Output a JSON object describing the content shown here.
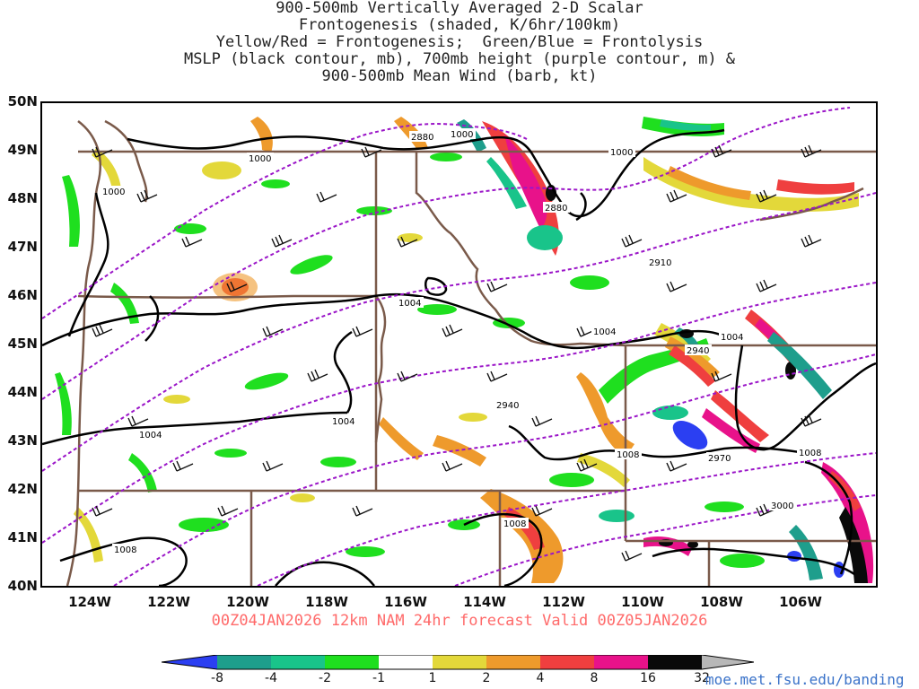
{
  "title_lines": [
    "900-500mb Vertically Averaged 2-D Scalar",
    "Frontogenesis (shaded, K/6hr/100km)",
    "Yellow/Red = Frontogenesis;  Green/Blue = Frontolysis",
    "MSLP (black contour, mb), 700mb height (purple contour, m) &",
    "900-500mb Mean Wind (barb, kt)"
  ],
  "lat_labels": [
    "50N",
    "49N",
    "48N",
    "47N",
    "46N",
    "45N",
    "44N",
    "43N",
    "42N",
    "41N",
    "40N"
  ],
  "lon_labels": [
    "124W",
    "122W",
    "120W",
    "118W",
    "116W",
    "114W",
    "112W",
    "110W",
    "108W",
    "106W"
  ],
  "valid_text": "00Z04JAN2026 12km NAM 24hr forecast Valid 00Z05JAN2026",
  "colorbar": {
    "labels": [
      "-8",
      "-4",
      "-2",
      "-1",
      "1",
      "2",
      "4",
      "8",
      "16",
      "32"
    ],
    "colors": [
      "#2b3ff2",
      "#1e9e8c",
      "#19c48a",
      "#1fdf1f",
      "#ffffff",
      "#e3d83a",
      "#ee9a2c",
      "#ef3f3f",
      "#e8128a",
      "#0a0a0a",
      "#b8b8b8"
    ]
  },
  "contour_labels": {
    "mslp": [
      "1000",
      "1000",
      "1000",
      "1000",
      "1004",
      "1004",
      "1004",
      "1004",
      "1004",
      "1008",
      "1008",
      "1008",
      "1008"
    ],
    "height": [
      "2880",
      "2880",
      "2910",
      "2940",
      "2940",
      "2970",
      "3000"
    ]
  },
  "url": "moe.met.fsu.edu/banding"
}
